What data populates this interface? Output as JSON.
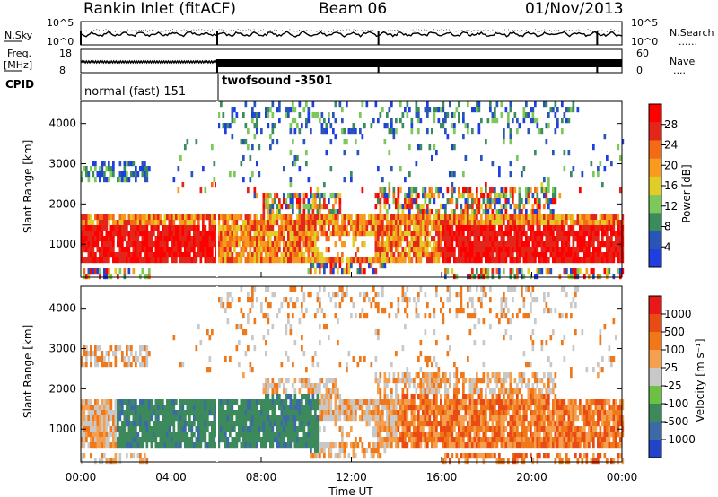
{
  "header": {
    "title": "Rankin Inlet (fitACF)",
    "beam": "Beam 06",
    "date": "01/Nov/2013"
  },
  "colors": {
    "power": [
      "#1f3ee0",
      "#2a55b8",
      "#3a8c5c",
      "#7dc85a",
      "#e2cc28",
      "#f79a1e",
      "#f56a14",
      "#e4261a",
      "#ff0000"
    ],
    "velocity": [
      "#2244c8",
      "#3c6aa6",
      "#3c8a5c",
      "#6cc042",
      "#c8c8c8",
      "#f5a050",
      "#f07818",
      "#e84c14",
      "#e81818"
    ]
  },
  "chart_data": [
    {
      "type": "line",
      "name": "noise",
      "left_label": "N.Sky",
      "right_label": "N.Search",
      "left_ticks": [
        "10^5",
        "10^0"
      ],
      "right_ticks": [
        "10^5",
        "10^0"
      ],
      "right_legend": "......"
    },
    {
      "type": "line",
      "name": "frequency",
      "left_label": "Freq.",
      "left_unit": "[MHz]",
      "left_ticks": [
        "18",
        "8"
      ],
      "right_label": "Nave",
      "right_ticks": [
        "60",
        "0"
      ],
      "right_legend": "....",
      "cpid_label": "CPID",
      "cpid_segments": [
        {
          "label": "normal (fast) 151",
          "start_hour": 0.0
        },
        {
          "label": "twofsound -3501",
          "start_hour": 6.0
        }
      ]
    },
    {
      "type": "heatmap",
      "name": "power",
      "ylabel": "Slant Range [km]",
      "yticks": [
        1000,
        2000,
        3000,
        4000
      ],
      "ylim": [
        180,
        4550
      ],
      "xlim": [
        0,
        24
      ],
      "colorbar_label": "Power [dB]",
      "colorbar_ticks": [
        "4",
        "8",
        "12",
        "16",
        "20",
        "24",
        "28"
      ],
      "colorbar_range": [
        0,
        32
      ]
    },
    {
      "type": "heatmap",
      "name": "velocity",
      "ylabel": "Slant Range [km]",
      "yticks": [
        1000,
        2000,
        3000,
        4000
      ],
      "ylim": [
        180,
        4550
      ],
      "xlim": [
        0,
        24
      ],
      "xlabel": "Time UT",
      "xticks": [
        "00:00",
        "04:00",
        "08:00",
        "12:00",
        "16:00",
        "20:00",
        "00:00"
      ],
      "colorbar_label": "Velocity [m s⁻¹]",
      "colorbar_ticks": [
        "1000",
        "500",
        "100",
        "25",
        "-25",
        "-100",
        "-500",
        "-1000"
      ]
    }
  ]
}
